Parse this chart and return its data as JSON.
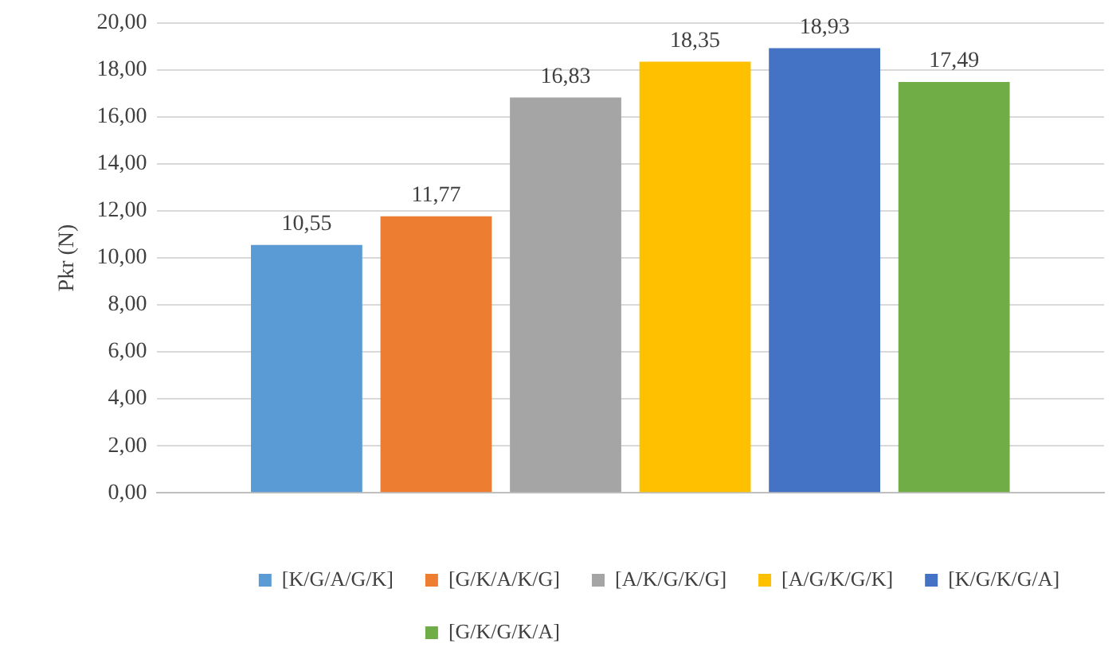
{
  "chart_data": {
    "type": "bar",
    "ylabel": "Pkr (N)",
    "categories": [
      null
    ],
    "series": [
      {
        "name": "[K/G/A/G/K]",
        "color": "#5b9bd5",
        "values": [
          10.55
        ],
        "value_labels": [
          "10,55"
        ]
      },
      {
        "name": "[G/K/A/K/G]",
        "color": "#ed7d31",
        "values": [
          11.77
        ],
        "value_labels": [
          "11,77"
        ]
      },
      {
        "name": "[A/K/G/K/G]",
        "color": "#a5a5a5",
        "values": [
          16.83
        ],
        "value_labels": [
          "16,83"
        ]
      },
      {
        "name": "[A/G/K/G/K]",
        "color": "#ffc000",
        "values": [
          18.35
        ],
        "value_labels": [
          "18,35"
        ]
      },
      {
        "name": "[K/G/K/G/A]",
        "color": "#4472c4",
        "values": [
          18.93
        ],
        "value_labels": [
          "18,93"
        ]
      },
      {
        "name": "[G/K/G/K/A]",
        "color": "#70ad47",
        "values": [
          17.49
        ],
        "value_labels": [
          "17,49"
        ]
      }
    ],
    "ylim": [
      0,
      20
    ],
    "yticks": [
      {
        "value": 0,
        "label": "0,00"
      },
      {
        "value": 2,
        "label": "2,00"
      },
      {
        "value": 4,
        "label": "4,00"
      },
      {
        "value": 6,
        "label": "6,00"
      },
      {
        "value": 8,
        "label": "8,00"
      },
      {
        "value": 10,
        "label": "10,00"
      },
      {
        "value": 12,
        "label": "12,00"
      },
      {
        "value": 14,
        "label": "14,00"
      },
      {
        "value": 16,
        "label": "16,00"
      },
      {
        "value": 18,
        "label": "18,00"
      },
      {
        "value": 20,
        "label": "20,00"
      }
    ],
    "grid": "y",
    "legend": "bottom"
  }
}
